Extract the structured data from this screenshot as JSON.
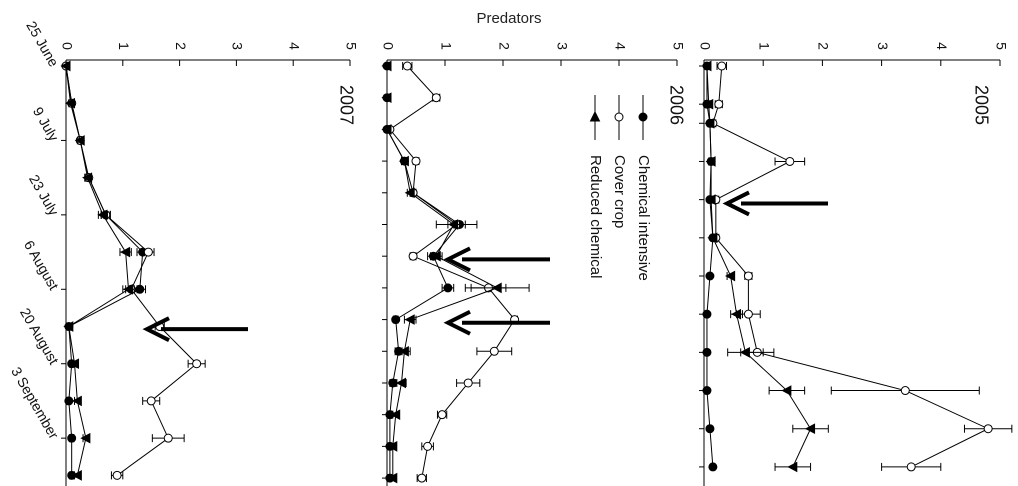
{
  "figure": {
    "title": "Predators",
    "legend": {
      "placement": "inside 2006 panel, left of the curves",
      "entries": [
        {
          "label": "Chemical intensive",
          "marker": "filled-circle"
        },
        {
          "label": "Cover crop",
          "marker": "open-circle"
        },
        {
          "label": "Reduced chemical",
          "marker": "filled-triangle"
        }
      ]
    },
    "rotation": "figure rotated 90 degrees clockwise"
  },
  "chart_data": [
    {
      "type": "line",
      "title": "2005",
      "xlabel": "",
      "ylabel": "",
      "ylim": [
        0,
        5
      ],
      "y_ticks": [
        "0",
        "1",
        "2",
        "3",
        "4",
        "5"
      ],
      "x": [
        0,
        2,
        3,
        5,
        7,
        9,
        11,
        13,
        15,
        17,
        19,
        21
      ],
      "arrows": [
        7.2
      ],
      "series": [
        {
          "name": "Chemical intensive",
          "values": [
            0.05,
            0.05,
            0.1,
            0.12,
            0.1,
            0.15,
            0.1,
            0.05,
            0.05,
            0.05,
            0.1,
            0.15
          ],
          "err": [
            0.02,
            0.02,
            0.03,
            0.04,
            0.03,
            0.03,
            0.03,
            0.02,
            0.02,
            0.02,
            0.03,
            0.03
          ]
        },
        {
          "name": "Cover crop",
          "values": [
            0.3,
            0.25,
            0.15,
            1.45,
            0.2,
            0.2,
            0.75,
            0.75,
            0.9,
            3.4,
            4.8,
            3.5
          ],
          "err": [
            0.08,
            0.06,
            0.05,
            0.25,
            0.05,
            0.05,
            0.06,
            0.2,
            0.28,
            1.25,
            0.4,
            0.5
          ]
        },
        {
          "name": "Reduced chemical",
          "values": [
            0.05,
            0.08,
            0.1,
            0.12,
            0.12,
            0.15,
            0.45,
            0.55,
            0.7,
            1.4,
            1.8,
            1.5
          ],
          "err": [
            0.02,
            0.02,
            0.03,
            0.03,
            0.03,
            0.03,
            0.06,
            0.1,
            0.3,
            0.3,
            0.3,
            0.3
          ]
        }
      ]
    },
    {
      "type": "line",
      "title": "2006",
      "xlabel": "",
      "ylabel": "",
      "ylim": [
        0,
        5
      ],
      "y_ticks": [
        "0",
        "1",
        "2",
        "3",
        "4",
        "5"
      ],
      "x": [
        0,
        2,
        4,
        6,
        8,
        10,
        12,
        14,
        16,
        18,
        20,
        22,
        24,
        26
      ],
      "arrows": [
        12.2,
        16.2
      ],
      "series": [
        {
          "name": "Chemical intensive",
          "values": [
            0.0,
            0.0,
            0.0,
            0.3,
            0.45,
            1.25,
            0.8,
            1.05,
            0.15,
            0.2,
            0.1,
            0.05,
            0.05,
            0.05
          ],
          "err": [
            0.02,
            0.02,
            0.02,
            0.05,
            0.05,
            0.1,
            0.1,
            0.1,
            0.04,
            0.06,
            0.05,
            0.03,
            0.03,
            0.03
          ]
        },
        {
          "name": "Cover crop",
          "values": [
            0.35,
            0.85,
            0.05,
            0.5,
            0.45,
            1.2,
            0.45,
            1.75,
            2.2,
            1.85,
            1.4,
            0.95,
            0.7,
            0.6
          ],
          "err": [
            0.08,
            0.06,
            0.03,
            0.05,
            0.05,
            0.35,
            0.05,
            0.3,
            0.05,
            0.3,
            0.2,
            0.08,
            0.1,
            0.08
          ]
        },
        {
          "name": "Reduced chemical",
          "values": [
            0.0,
            0.0,
            0.0,
            0.3,
            0.4,
            1.15,
            0.85,
            1.9,
            0.4,
            0.3,
            0.25,
            0.15,
            0.1,
            0.1
          ],
          "err": [
            0.02,
            0.02,
            0.02,
            0.05,
            0.05,
            0.1,
            0.1,
            0.55,
            0.1,
            0.1,
            0.08,
            0.05,
            0.04,
            0.04
          ]
        }
      ]
    },
    {
      "type": "line",
      "title": "2007",
      "xlabel": "",
      "ylabel": "",
      "ylim": [
        0,
        5
      ],
      "y_ticks": [
        "0",
        "1",
        "2",
        "3",
        "4",
        "5"
      ],
      "x": [
        0,
        7,
        14,
        21,
        28,
        35,
        42,
        49,
        56,
        63,
        70,
        77
      ],
      "x_ticks": [
        {
          "pos": 0,
          "label": "25 June"
        },
        {
          "pos": 14,
          "label": "9 July"
        },
        {
          "pos": 28,
          "label": "23 July"
        },
        {
          "pos": 42,
          "label": "6 August"
        },
        {
          "pos": 56,
          "label": "20 August"
        },
        {
          "pos": 70,
          "label": "3 September"
        }
      ],
      "arrows": [
        49.5
      ],
      "series": [
        {
          "name": "Chemical intensive",
          "values": [
            0.0,
            0.1,
            0.25,
            0.4,
            0.7,
            1.35,
            1.3,
            0.05,
            0.1,
            0.05,
            0.1,
            0.1
          ],
          "err": [
            0.02,
            0.03,
            0.04,
            0.05,
            0.08,
            0.1,
            0.1,
            0.03,
            0.04,
            0.03,
            0.04,
            0.04
          ]
        },
        {
          "name": "Cover crop",
          "values": [
            0.0,
            0.1,
            0.25,
            0.4,
            0.7,
            1.45,
            1.15,
            1.65,
            2.3,
            1.5,
            1.8,
            0.9
          ],
          "err": [
            0.02,
            0.03,
            0.04,
            0.05,
            0.08,
            0.1,
            0.1,
            0.08,
            0.15,
            0.15,
            0.28,
            0.1
          ]
        },
        {
          "name": "Reduced chemical",
          "values": [
            0.0,
            0.08,
            0.25,
            0.38,
            0.65,
            1.05,
            1.1,
            0.05,
            0.15,
            0.2,
            0.35,
            0.2
          ],
          "err": [
            0.02,
            0.03,
            0.04,
            0.05,
            0.08,
            0.1,
            0.1,
            0.03,
            0.04,
            0.05,
            0.05,
            0.05
          ]
        }
      ]
    }
  ]
}
